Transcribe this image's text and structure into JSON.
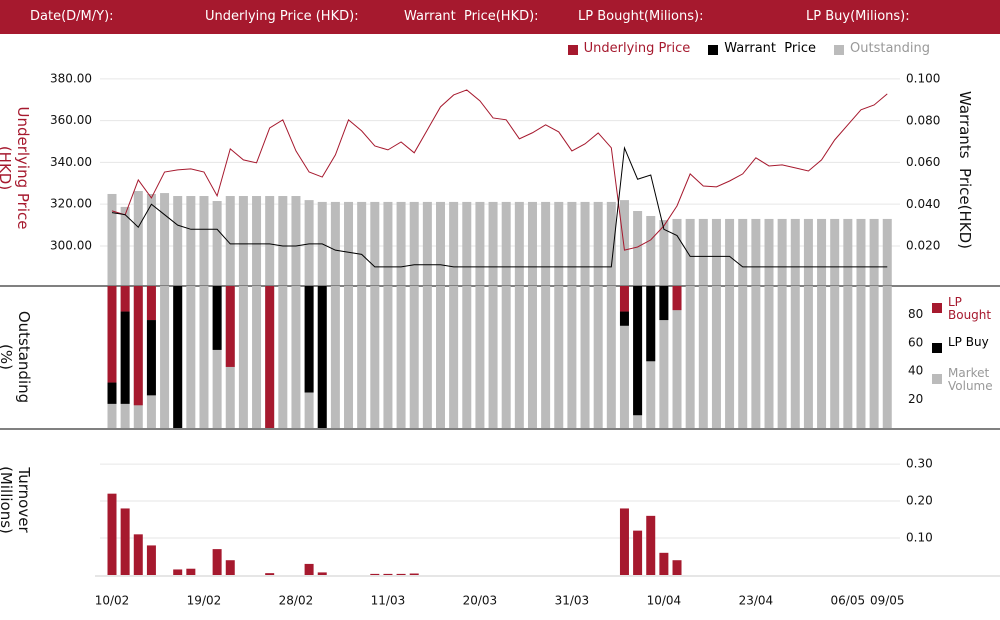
{
  "header": {
    "labels": [
      "Date(D/M/Y):",
      "Underlying Price (HKD):",
      "Warrant  Price(HKD):",
      "LP Bought(Milions):",
      "LP Buy(Milions):"
    ]
  },
  "chart_data": [
    {
      "type": "combo",
      "ylabel": "Underlying Price (HKD)",
      "y2label": "Warrants  Price(HKD)",
      "grid": true,
      "legend": "top-right",
      "ylim": [
        281.3,
        390
      ],
      "yticks": [
        {
          "value": 300,
          "label": "300.00"
        },
        {
          "value": 320,
          "label": "320.00"
        },
        {
          "value": 340,
          "label": "340.00"
        },
        {
          "value": 360,
          "label": "360.00"
        },
        {
          "value": 380,
          "label": "380.00"
        }
      ],
      "y2lim": [
        0.0013,
        0.1101
      ],
      "y2ticks": [
        {
          "value": 0.02,
          "label": "0.020"
        },
        {
          "value": 0.04,
          "label": "0.040"
        },
        {
          "value": 0.06,
          "label": "0.060"
        },
        {
          "value": 0.08,
          "label": "0.080"
        },
        {
          "value": 0.1,
          "label": "0.100"
        }
      ],
      "y3lim": [
        0,
        100
      ],
      "series": [
        {
          "name": "Underlying Price",
          "color": "#a6192e",
          "kind": "line",
          "axis": "y",
          "values": [
            316.8,
            314.9,
            331.6,
            323,
            335.4,
            336.4,
            336.9,
            335.4,
            324,
            346.5,
            341.2,
            339.8,
            356.5,
            360.4,
            345.5,
            335.4,
            333,
            343.6,
            360.4,
            355.1,
            347.9,
            346,
            349.8,
            344.6,
            355.6,
            366.6,
            372.3,
            374.7,
            369.5,
            361.3,
            360.4,
            351.3,
            354.2,
            358,
            354.6,
            345.5,
            348.9,
            354.1,
            347,
            298,
            299.5,
            302.9,
            309.6,
            319.2,
            334.5,
            328.7,
            328.3,
            331.1,
            334.5,
            342.2,
            338.3,
            338.8,
            337.4,
            335.9,
            341.2,
            350.8,
            358,
            365.2,
            367.5,
            372.8
          ]
        },
        {
          "name": "Warrant  Price",
          "color": "#000000",
          "kind": "line",
          "axis": "y2",
          "values": [
            0.036,
            0.035,
            0.029,
            0.04,
            0.035,
            0.03,
            0.028,
            0.028,
            0.028,
            0.021,
            0.021,
            0.021,
            0.021,
            0.02,
            0.02,
            0.021,
            0.021,
            0.018,
            0.017,
            0.016,
            0.01,
            0.01,
            0.01,
            0.011,
            0.011,
            0.011,
            0.01,
            0.01,
            0.01,
            0.01,
            0.01,
            0.01,
            0.01,
            0.01,
            0.01,
            0.01,
            0.01,
            0.01,
            0.01,
            0.067,
            0.052,
            0.054,
            0.028,
            0.025,
            0.015,
            0.015,
            0.015,
            0.015,
            0.01,
            0.01,
            0.01,
            0.01,
            0.01,
            0.01,
            0.01,
            0.01,
            0.01,
            0.01,
            0.01,
            0.01
          ]
        },
        {
          "name": "Outstanding",
          "color": "#bbbbbb",
          "text_color": "#999999",
          "kind": "bar",
          "axis": "y3",
          "values": [
            40.1,
            34.4,
            41.4,
            40.1,
            40.5,
            39.2,
            39.2,
            39.2,
            37,
            39.2,
            39.2,
            39.2,
            39.2,
            39.2,
            39.2,
            37.4,
            36.6,
            36.6,
            36.6,
            36.6,
            36.6,
            36.6,
            36.6,
            36.6,
            36.6,
            36.6,
            36.6,
            36.6,
            36.6,
            36.6,
            36.6,
            36.6,
            36.6,
            36.6,
            36.6,
            36.6,
            36.6,
            36.6,
            36.6,
            37.4,
            32.6,
            30.4,
            28.6,
            29.1,
            29.1,
            29.1,
            29.1,
            29.1,
            29.1,
            29.1,
            29.1,
            29.1,
            29.1,
            29.1,
            29.1,
            29.1,
            29.1,
            29.1,
            29.1,
            29.1
          ]
        }
      ]
    },
    {
      "type": "hanging-bar",
      "ylabel": "Outstanding (%)",
      "ylim": [
        0,
        100
      ],
      "yticks": [
        20,
        40,
        60,
        80
      ],
      "legend": "right",
      "series": [
        {
          "name": "LP Bought",
          "color": "#a6192e",
          "values": [
            68,
            18,
            84,
            24,
            0,
            0,
            0,
            0,
            0,
            57,
            0,
            0,
            100,
            0,
            0,
            0,
            0,
            0,
            0,
            0,
            0,
            0,
            0,
            0,
            0,
            0,
            0,
            0,
            0,
            0,
            0,
            0,
            0,
            0,
            0,
            0,
            0,
            0,
            0,
            18,
            0,
            0,
            0,
            17,
            0,
            0,
            0,
            0,
            0,
            0,
            0,
            0,
            0,
            0,
            0,
            0,
            0,
            0,
            0,
            0
          ]
        },
        {
          "name": "LP Buy",
          "color": "#000000",
          "values": [
            15,
            65,
            0,
            53,
            0,
            100,
            0,
            0,
            45,
            0,
            0,
            0,
            0,
            0,
            0,
            75,
            100,
            0,
            0,
            0,
            0,
            0,
            0,
            0,
            0,
            0,
            0,
            0,
            0,
            0,
            0,
            0,
            0,
            0,
            0,
            0,
            0,
            0,
            0,
            10,
            91,
            53,
            24,
            0,
            0,
            0,
            0,
            0,
            0,
            0,
            0,
            0,
            0,
            0,
            0,
            0,
            0,
            0,
            0,
            0
          ]
        },
        {
          "name": "Market Volume",
          "color": "#bbbbbb",
          "text_color": "#999999",
          "values": [
            100,
            100,
            100,
            100,
            100,
            100,
            100,
            100,
            100,
            100,
            100,
            100,
            100,
            100,
            100,
            100,
            100,
            100,
            100,
            100,
            100,
            100,
            100,
            100,
            100,
            100,
            100,
            100,
            100,
            100,
            100,
            100,
            100,
            100,
            100,
            100,
            100,
            100,
            100,
            100,
            100,
            100,
            100,
            100,
            100,
            100,
            100,
            100,
            100,
            100,
            100,
            100,
            100,
            100,
            100,
            100,
            100,
            100,
            100,
            100
          ]
        }
      ]
    },
    {
      "type": "bar",
      "ylabel": "Turnover (Millions)",
      "grid": true,
      "color": "#a6192e",
      "ylim": [
        0,
        0.33
      ],
      "yticks": [
        {
          "value": 0.1,
          "label": "0.10"
        },
        {
          "value": 0.2,
          "label": "0.20"
        },
        {
          "value": 0.3,
          "label": "0.30"
        }
      ],
      "categories": [
        "10/02",
        null,
        null,
        null,
        null,
        null,
        null,
        "19/02",
        null,
        null,
        null,
        null,
        null,
        null,
        "28/02",
        null,
        null,
        null,
        null,
        null,
        null,
        "11/03",
        null,
        null,
        null,
        null,
        null,
        null,
        "20/03",
        null,
        null,
        null,
        null,
        null,
        null,
        "31/03",
        null,
        null,
        null,
        null,
        null,
        null,
        "10/04",
        null,
        null,
        null,
        null,
        null,
        null,
        "23/04",
        null,
        null,
        null,
        null,
        null,
        null,
        "06/05",
        null,
        null,
        "09/05"
      ],
      "values": [
        0.22,
        0.18,
        0.11,
        0.08,
        0,
        0.015,
        0.017,
        0,
        0.07,
        0.04,
        0,
        0,
        0.005,
        0,
        0,
        0.03,
        0.007,
        0,
        0,
        0,
        0.003,
        0.003,
        0.003,
        0.004,
        0,
        0,
        0,
        0,
        0,
        0,
        0,
        0,
        0,
        0,
        0,
        0,
        0,
        0,
        0,
        0.18,
        0.12,
        0.16,
        0.06,
        0.04,
        0,
        0,
        0,
        0,
        0,
        0,
        0,
        0,
        0,
        0,
        0,
        0,
        0,
        0,
        0,
        0
      ]
    }
  ]
}
